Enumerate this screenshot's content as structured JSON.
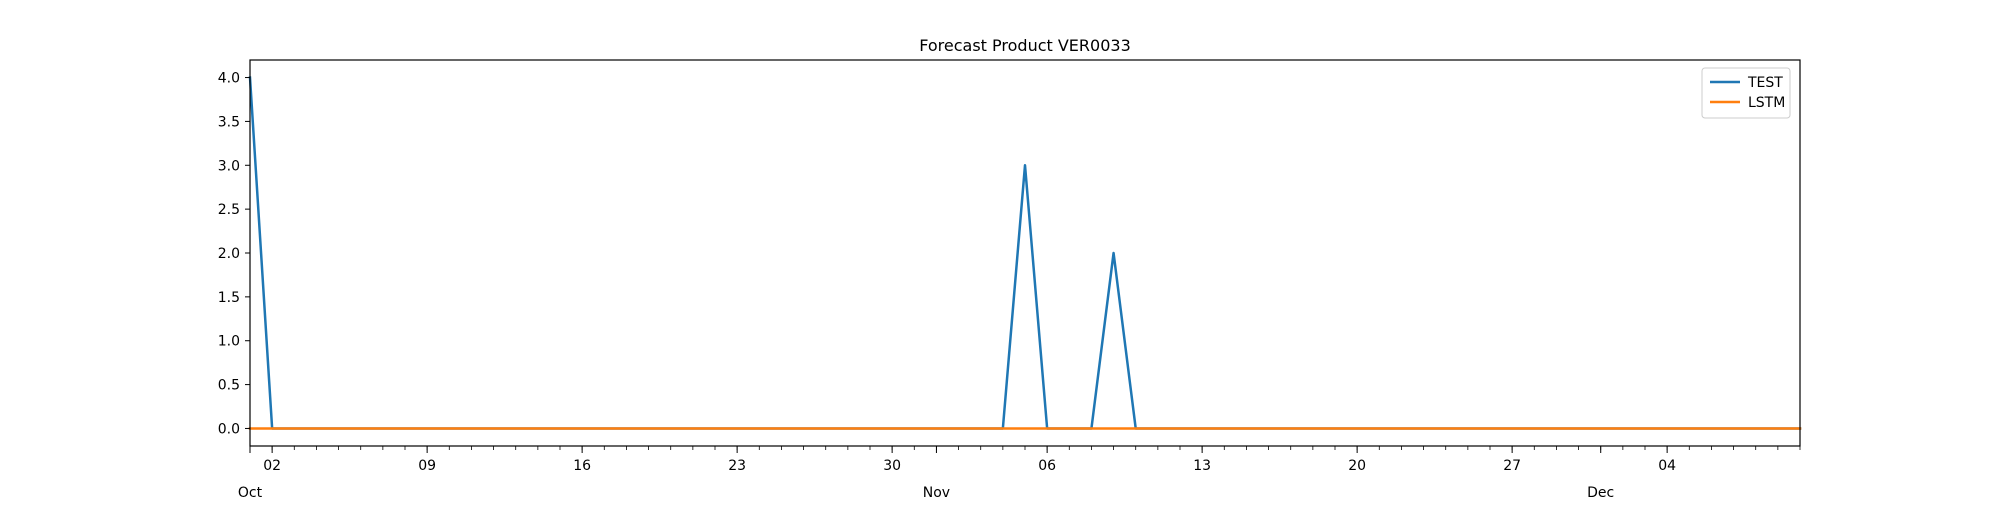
{
  "chart_data": {
    "type": "line",
    "title": "Forecast Product VER0033",
    "xlabel": "",
    "ylabel": "",
    "x_type": "date",
    "xlim": [
      "2023-10-01",
      "2023-12-10"
    ],
    "ylim": [
      -0.2,
      4.2
    ],
    "y_ticks": [
      0.0,
      0.5,
      1.0,
      1.5,
      2.0,
      2.5,
      3.0,
      3.5,
      4.0
    ],
    "y_tick_labels": [
      "0.0",
      "0.5",
      "1.0",
      "1.5",
      "2.0",
      "2.5",
      "3.0",
      "3.5",
      "4.0"
    ],
    "x_major_ticks": [
      "2023-10-02",
      "2023-10-09",
      "2023-10-16",
      "2023-10-23",
      "2023-10-30",
      "2023-11-06",
      "2023-11-13",
      "2023-11-20",
      "2023-11-27",
      "2023-12-04"
    ],
    "x_major_labels": [
      "02",
      "09",
      "16",
      "23",
      "30",
      "06",
      "13",
      "20",
      "27",
      "04"
    ],
    "x_month_ticks": [
      "2023-10-01",
      "2023-11-01",
      "2023-12-01"
    ],
    "x_month_labels": [
      "Oct",
      "Nov",
      "Dec"
    ],
    "grid": false,
    "legend_position": "upper right",
    "series": [
      {
        "name": "TEST",
        "color": "#1f77b4",
        "x": [
          "2023-10-01",
          "2023-10-02",
          "2023-11-04",
          "2023-11-05",
          "2023-11-06",
          "2023-11-08",
          "2023-11-09",
          "2023-11-10",
          "2023-12-10"
        ],
        "values": [
          4,
          0,
          0,
          3,
          0,
          0,
          2,
          0,
          0
        ]
      },
      {
        "name": "LSTM",
        "color": "#ff7f0e",
        "x": [
          "2023-10-01",
          "2023-12-10"
        ],
        "values": [
          0,
          0
        ]
      }
    ]
  }
}
